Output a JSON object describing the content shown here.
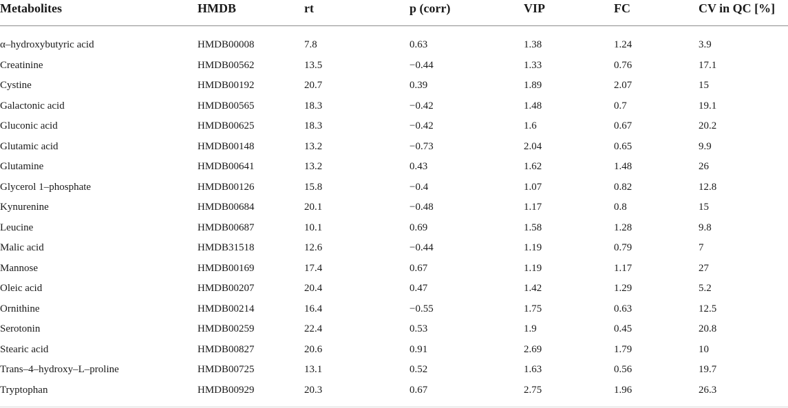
{
  "columns": [
    "Metabolites",
    "HMDB",
    "rt",
    "p (corr)",
    "VIP",
    "FC",
    "CV in QC [%]"
  ],
  "rows": [
    [
      "α–hydroxybutyric acid",
      "HMDB00008",
      "7.8",
      "0.63",
      "1.38",
      "1.24",
      "3.9"
    ],
    [
      "Creatinine",
      "HMDB00562",
      "13.5",
      "−0.44",
      "1.33",
      "0.76",
      "17.1"
    ],
    [
      "Cystine",
      "HMDB00192",
      "20.7",
      "0.39",
      "1.89",
      "2.07",
      "15"
    ],
    [
      "Galactonic acid",
      "HMDB00565",
      "18.3",
      "−0.42",
      "1.48",
      "0.7",
      "19.1"
    ],
    [
      "Gluconic acid",
      "HMDB00625",
      "18.3",
      "−0.42",
      "1.6",
      "0.67",
      "20.2"
    ],
    [
      "Glutamic acid",
      "HMDB00148",
      "13.2",
      "−0.73",
      "2.04",
      "0.65",
      "9.9"
    ],
    [
      "Glutamine",
      "HMDB00641",
      "13.2",
      "0.43",
      "1.62",
      "1.48",
      "26"
    ],
    [
      "Glycerol 1–phosphate",
      "HMDB00126",
      "15.8",
      "−0.4",
      "1.07",
      "0.82",
      "12.8"
    ],
    [
      "Kynurenine",
      "HMDB00684",
      "20.1",
      "−0.48",
      "1.17",
      "0.8",
      "15"
    ],
    [
      "Leucine",
      "HMDB00687",
      "10.1",
      "0.69",
      "1.58",
      "1.28",
      "9.8"
    ],
    [
      "Malic acid",
      "HMDB31518",
      "12.6",
      "−0.44",
      "1.19",
      "0.79",
      "7"
    ],
    [
      "Mannose",
      "HMDB00169",
      "17.4",
      "0.67",
      "1.19",
      "1.17",
      "27"
    ],
    [
      "Oleic acid",
      "HMDB00207",
      "20.4",
      "0.47",
      "1.42",
      "1.29",
      "5.2"
    ],
    [
      "Ornithine",
      "HMDB00214",
      "16.4",
      "−0.55",
      "1.75",
      "0.63",
      "12.5"
    ],
    [
      "Serotonin",
      "HMDB00259",
      "22.4",
      "0.53",
      "1.9",
      "0.45",
      "20.8"
    ],
    [
      "Stearic acid",
      "HMDB00827",
      "20.6",
      "0.91",
      "2.69",
      "1.79",
      "10"
    ],
    [
      "Trans–4–hydroxy–L–proline",
      "HMDB00725",
      "13.1",
      "0.52",
      "1.63",
      "0.56",
      "19.7"
    ],
    [
      "Tryptophan",
      "HMDB00929",
      "20.3",
      "0.67",
      "2.75",
      "1.96",
      "26.3"
    ]
  ]
}
